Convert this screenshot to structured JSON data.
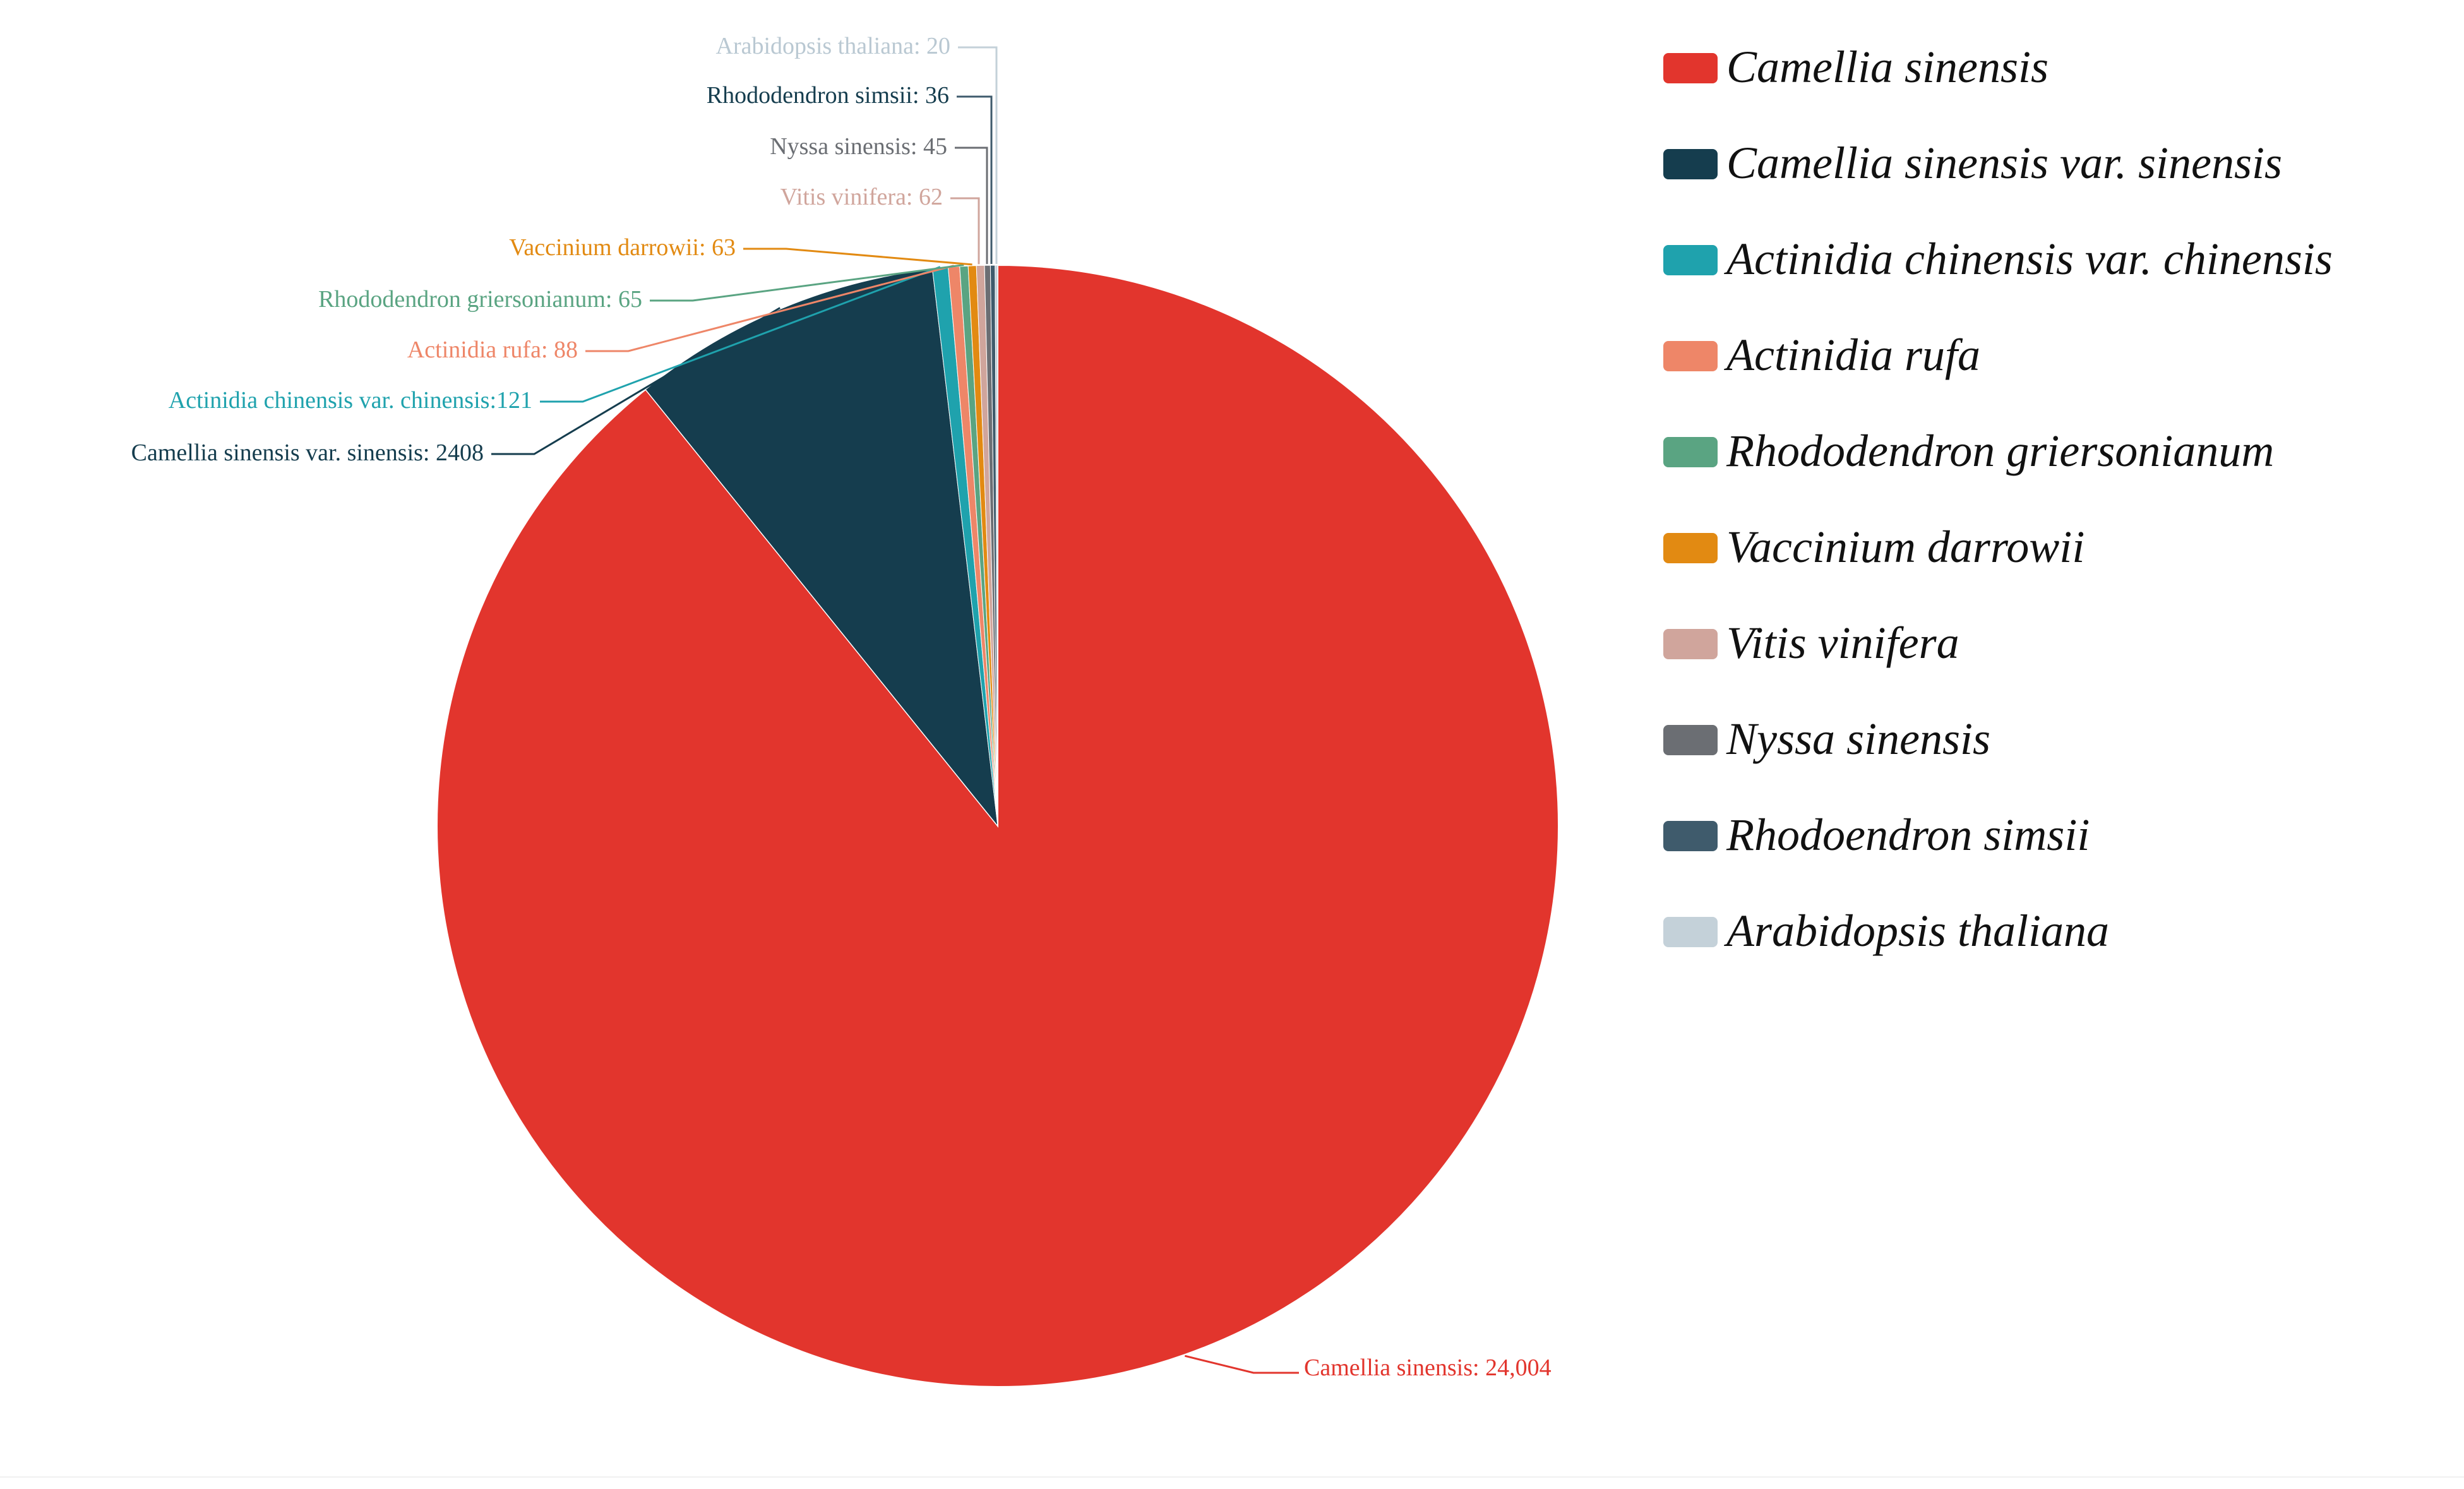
{
  "chart_data": {
    "type": "pie",
    "title": "",
    "start_angle_deg": 0,
    "direction": "clockwise",
    "series": [
      {
        "name": "Camellia sinensis",
        "value": 24004,
        "label": "Camellia sinensis: 24,004",
        "color": "#e2352d"
      },
      {
        "name": "Camellia sinensis var. sinensis",
        "value": 2408,
        "label": "Camellia sinensis var. sinensis: 2408",
        "color": "#153d4e"
      },
      {
        "name": "Actinidia chinensis var. chinensis",
        "value": 121,
        "label": "Actinidia chinensis var. chinensis:121",
        "color": "#1fa2ad"
      },
      {
        "name": "Actinidia rufa",
        "value": 88,
        "label": "Actinidia rufa: 88",
        "color": "#ee8668"
      },
      {
        "name": "Rhododendron griersonianum",
        "value": 65,
        "label": "Rhododendron griersonianum: 65",
        "color": "#5aa482"
      },
      {
        "name": "Vaccinium darrowii",
        "value": 63,
        "label": "Vaccinium darrowii: 63",
        "color": "#e28a12"
      },
      {
        "name": "Vitis vinifera",
        "value": 62,
        "label": "Vitis vinifera: 62",
        "color": "#d0a59c"
      },
      {
        "name": "Nyssa sinensis",
        "value": 45,
        "label": "Nyssa sinensis: 45",
        "color": "#6b6e73"
      },
      {
        "name": "Rhododendron simsii",
        "value": 36,
        "label": "Rhododendron simsii: 36",
        "color": "#3f5b6c"
      },
      {
        "name": "Arabidopsis thaliana",
        "value": 20,
        "label": "Arabidopsis thaliana: 20",
        "color": "#c4d1d9"
      }
    ],
    "legend": {
      "placement": "right",
      "entries": [
        "Camellia sinensis",
        "Camellia sinensis var. sinensis",
        "Actinidia chinensis var. chinensis",
        "Actinidia rufa",
        "Rhododendron griersonianum",
        "Vaccinium darrowii",
        "Vitis vinifera",
        "Nyssa sinensis",
        "Rhodoendron simsii",
        "Arabidopsis thaliana"
      ]
    },
    "grid": false
  }
}
